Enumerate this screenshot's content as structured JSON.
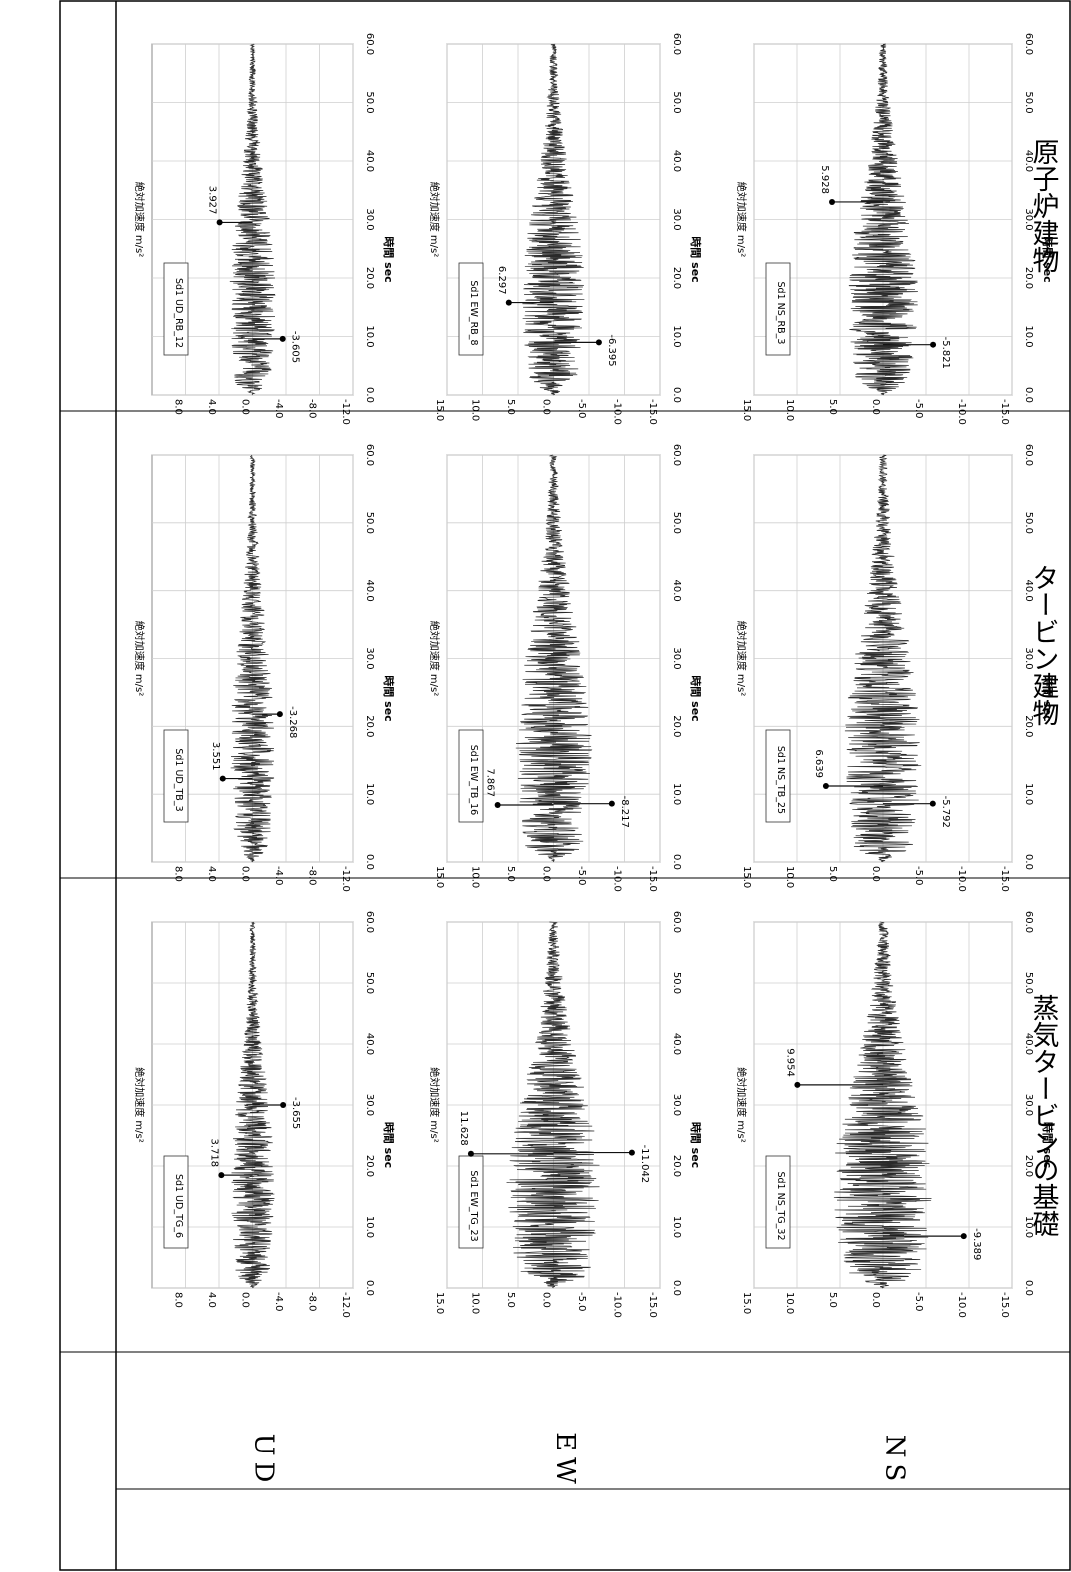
{
  "row_headers": [
    "NS",
    "EW",
    "UD"
  ],
  "col_headers": [
    "原子炉建物",
    "タービン建物",
    "蒸気タービンの基礎"
  ],
  "chart_data": [
    {
      "type": "line",
      "row": 0,
      "col": 0,
      "legend": "Sd1 NS_RB_3",
      "xlabel": "時間 sec",
      "ylabel": "絶対加速度 m/s²",
      "xlim": [
        0,
        60
      ],
      "ylim": [
        -15,
        15
      ],
      "xticks": [
        0,
        10,
        20,
        30,
        40,
        50,
        60
      ],
      "yticks": [
        -15,
        -10,
        -5,
        0,
        5,
        10,
        15
      ],
      "amplitude": 4.0,
      "peaks": [
        {
          "t": 33.0,
          "v": 5.928,
          "label": "5.928"
        },
        {
          "t": 8.6,
          "v": -5.821,
          "label": "-5.821"
        }
      ]
    },
    {
      "type": "line",
      "row": 1,
      "col": 0,
      "legend": "Sd1 EW_RB_8",
      "xlabel": "時間 sec",
      "ylabel": "絶対加速度 m/s²",
      "xlim": [
        0,
        60
      ],
      "ylim": [
        -15,
        15
      ],
      "xticks": [
        0,
        10,
        20,
        30,
        40,
        50,
        60
      ],
      "yticks": [
        -15,
        -10,
        -5,
        0,
        5,
        10,
        15
      ],
      "amplitude": 4.4,
      "peaks": [
        {
          "t": 15.8,
          "v": 6.297,
          "label": "6.297"
        },
        {
          "t": 9.0,
          "v": -6.395,
          "label": "-6.395"
        }
      ]
    },
    {
      "type": "line",
      "row": 2,
      "col": 0,
      "legend": "Sd1 UD_RB_12",
      "xlabel": "時間 sec",
      "ylabel": "絶対加速度 m/s²",
      "xlim": [
        0,
        60
      ],
      "ylim": [
        -12,
        12
      ],
      "xticks": [
        0,
        10,
        20,
        30,
        40,
        50,
        60
      ],
      "yticks": [
        -12,
        -8,
        -4,
        0,
        4,
        8
      ],
      "amplitude": 2.7,
      "peaks": [
        {
          "t": 29.5,
          "v": 3.927,
          "label": "3.927"
        },
        {
          "t": 9.6,
          "v": -3.605,
          "label": "-3.605"
        }
      ]
    },
    {
      "type": "line",
      "row": 0,
      "col": 1,
      "legend": "Sd1 NS_TB_25",
      "xlabel": "時間 sec",
      "ylabel": "絶対加速度 m/s²",
      "xlim": [
        0,
        60
      ],
      "ylim": [
        -15,
        15
      ],
      "xticks": [
        0,
        10,
        20,
        30,
        40,
        50,
        60
      ],
      "yticks": [
        -15,
        -10,
        -5,
        0,
        5,
        10,
        15
      ],
      "amplitude": 4.4,
      "peaks": [
        {
          "t": 11.2,
          "v": 6.639,
          "label": "6.639"
        },
        {
          "t": 8.6,
          "v": -5.792,
          "label": "-5.792"
        }
      ]
    },
    {
      "type": "line",
      "row": 1,
      "col": 1,
      "legend": "Sd1 EW_TB_16",
      "xlabel": "時間 sec",
      "ylabel": "絶対加速度 m/s²",
      "xlim": [
        0,
        60
      ],
      "ylim": [
        -15,
        15
      ],
      "xticks": [
        0,
        10,
        20,
        30,
        40,
        50,
        60
      ],
      "yticks": [
        -15,
        -10,
        -5,
        0,
        5,
        10,
        15
      ],
      "amplitude": 5.3,
      "peaks": [
        {
          "t": 8.4,
          "v": 7.867,
          "label": "7.867"
        },
        {
          "t": 8.6,
          "v": -8.217,
          "label": "-8.217"
        }
      ]
    },
    {
      "type": "line",
      "row": 2,
      "col": 1,
      "legend": "Sd1 UD_TB_3",
      "xlabel": "時間 sec",
      "ylabel": "絶対加速度 m/s²",
      "xlim": [
        0,
        60
      ],
      "ylim": [
        -12,
        12
      ],
      "xticks": [
        0,
        10,
        20,
        30,
        40,
        50,
        60
      ],
      "yticks": [
        -12,
        -8,
        -4,
        0,
        4,
        8
      ],
      "amplitude": 2.6,
      "peaks": [
        {
          "t": 12.3,
          "v": 3.551,
          "label": "3.551"
        },
        {
          "t": 21.8,
          "v": -3.268,
          "label": "-3.268"
        }
      ]
    },
    {
      "type": "line",
      "row": 0,
      "col": 2,
      "legend": "Sd1 NS_TG_32",
      "xlabel": "時間 sec",
      "ylabel": "絶対加速度 m/s²",
      "xlim": [
        0,
        60
      ],
      "ylim": [
        -15,
        15
      ],
      "xticks": [
        0,
        10,
        20,
        30,
        40,
        50,
        60
      ],
      "yticks": [
        -15,
        -10,
        -5,
        0,
        5,
        10,
        15
      ],
      "amplitude": 5.8,
      "peaks": [
        {
          "t": 33.3,
          "v": 9.954,
          "label": "9.954"
        },
        {
          "t": 8.5,
          "v": -9.389,
          "label": "-9.389"
        }
      ]
    },
    {
      "type": "line",
      "row": 1,
      "col": 2,
      "legend": "Sd1 EW_TG_23",
      "xlabel": "時間 sec",
      "ylabel": "絶対加速度 m/s²",
      "xlim": [
        0,
        60
      ],
      "ylim": [
        -15,
        15
      ],
      "xticks": [
        0,
        10,
        20,
        30,
        40,
        50,
        60
      ],
      "yticks": [
        -15,
        -10,
        -5,
        0,
        5,
        10,
        15
      ],
      "amplitude": 6.5,
      "peaks": [
        {
          "t": 22.0,
          "v": 11.628,
          "label": "11.628"
        },
        {
          "t": 22.2,
          "v": -11.042,
          "label": "-11.042"
        }
      ]
    },
    {
      "type": "line",
      "row": 2,
      "col": 2,
      "legend": "Sd1 UD_TG_6",
      "xlabel": "時間 sec",
      "ylabel": "絶対加速度 m/s²",
      "xlim": [
        0,
        60
      ],
      "ylim": [
        -12,
        12
      ],
      "xticks": [
        0,
        10,
        20,
        30,
        40,
        50,
        60
      ],
      "yticks": [
        -12,
        -8,
        -4,
        0,
        4,
        8
      ],
      "amplitude": 2.6,
      "peaks": [
        {
          "t": 18.5,
          "v": 3.718,
          "label": "3.718"
        },
        {
          "t": 30.0,
          "v": -3.655,
          "label": "-3.655"
        }
      ]
    }
  ]
}
